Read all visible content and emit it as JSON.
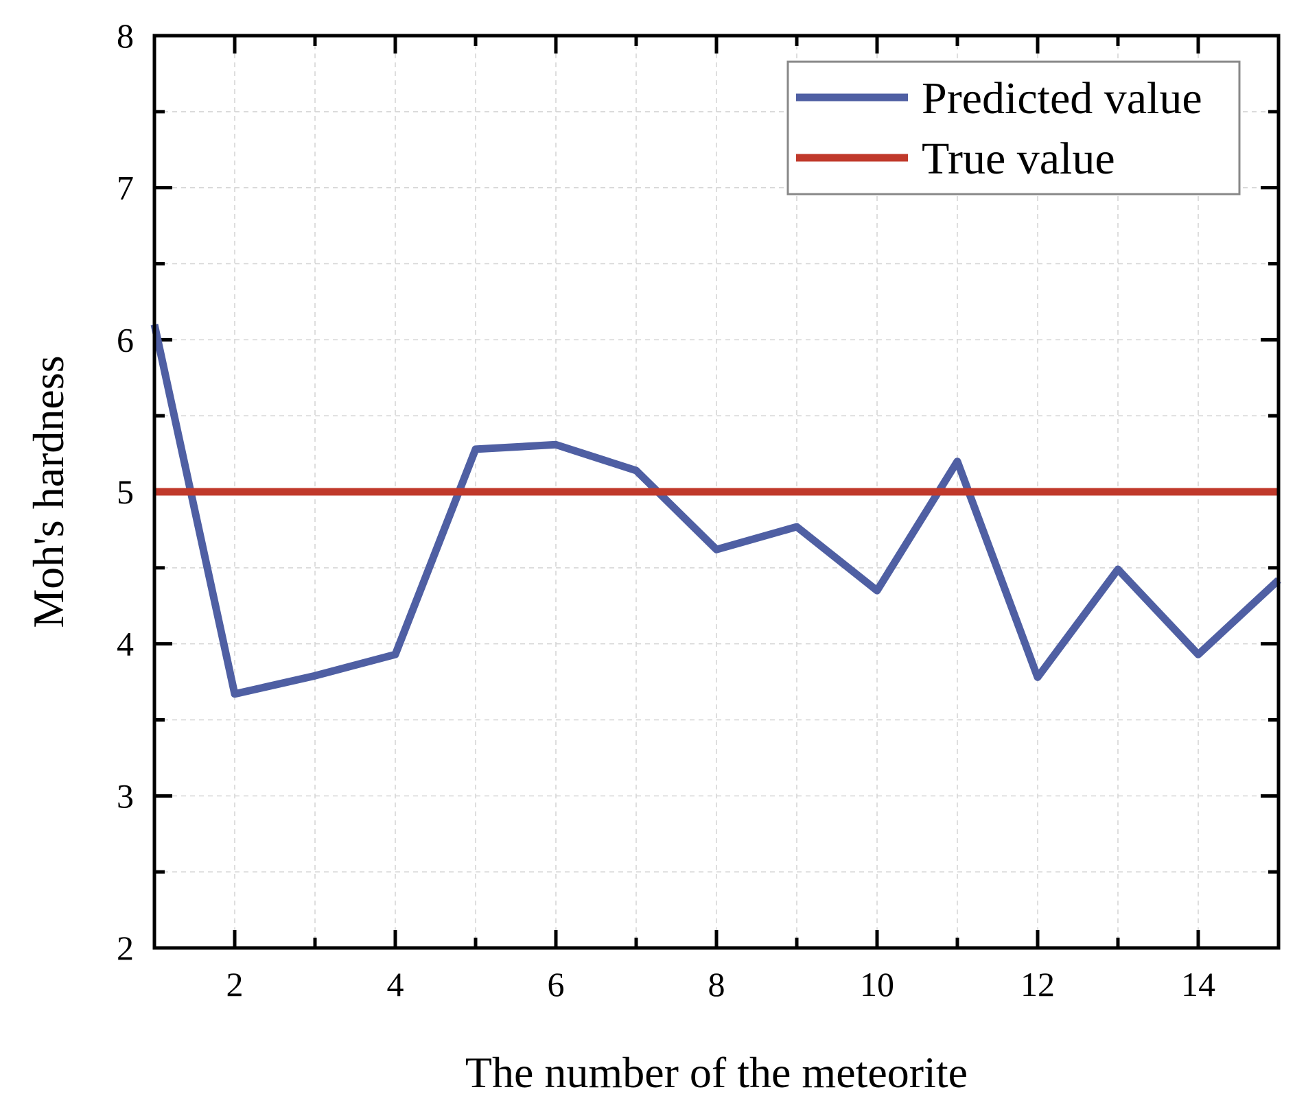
{
  "chart_data": {
    "type": "line",
    "title": "",
    "xlabel": "The number of the meteorite",
    "ylabel": "Moh's hardness",
    "xlim": [
      1,
      15
    ],
    "ylim": [
      2,
      8
    ],
    "xticks": [
      2,
      4,
      6,
      8,
      10,
      12,
      14
    ],
    "yticks": [
      2,
      3,
      4,
      5,
      6,
      7,
      8
    ],
    "grid": true,
    "legend_position": "top-right",
    "series": [
      {
        "name": "Predicted value",
        "color": "#4f5fa3",
        "x": [
          1,
          2,
          3,
          4,
          5,
          6,
          7,
          8,
          9,
          10,
          11,
          12,
          13,
          14,
          15
        ],
        "values": [
          6.1,
          3.67,
          3.79,
          3.93,
          5.28,
          5.31,
          5.14,
          4.62,
          4.77,
          4.35,
          5.2,
          3.78,
          4.49,
          3.93,
          4.42
        ]
      },
      {
        "name": "True value",
        "color": "#c0392b",
        "x": [
          1,
          15
        ],
        "values": [
          5,
          5
        ]
      }
    ]
  }
}
